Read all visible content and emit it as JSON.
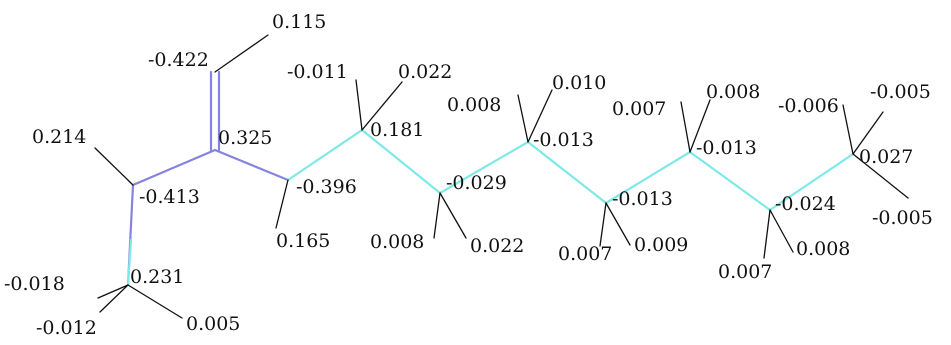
{
  "colors": {
    "carbon_bond": "#7fe8e8",
    "nitrogen_bond": "#8484e0",
    "hydrogen_bond": "#111111",
    "text": "#111111"
  },
  "molecule": {
    "atoms": {
      "c_methyl": "0.231",
      "n_amide": "-0.413",
      "c_carbonyl": "0.325",
      "n_second": "-0.396",
      "c1": "0.181",
      "c2": "-0.029",
      "c3": "-0.013",
      "c4": "-0.013",
      "c5": "-0.013",
      "c6": "-0.024",
      "c_terminal": "0.027",
      "o_carbonyl": "-0.422"
    },
    "hydrogens": {
      "h_oh": "0.115",
      "h_n_amide": "0.214",
      "h_n_second": "0.165",
      "h_methyl_a": "-0.018",
      "h_methyl_b": "-0.012",
      "h_methyl_c": "0.005",
      "h_c1_a": "-0.011",
      "h_c1_b": "0.022",
      "h_c2_a": "0.008",
      "h_c2_b": "0.022",
      "h_c3_a": "0.008",
      "h_c3_b": "0.010",
      "h_c4_a": "0.007",
      "h_c4_b": "0.009",
      "h_c5_a": "0.007",
      "h_c5_b": "0.008",
      "h_c6_a": "0.007",
      "h_c6_b": "0.008",
      "h_term_a": "-0.006",
      "h_term_b": "-0.005",
      "h_term_c": "-0.005"
    }
  }
}
